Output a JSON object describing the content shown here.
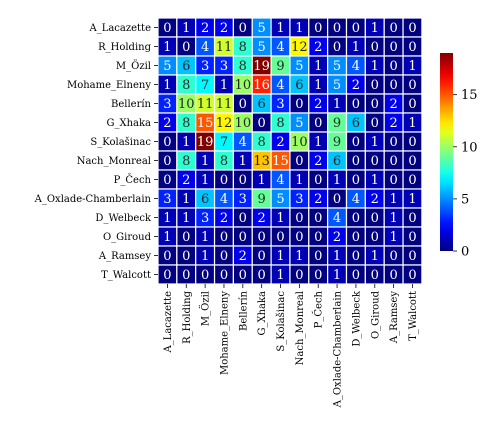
{
  "chart_data": {
    "type": "heatmap",
    "title": "",
    "xlabel": "",
    "ylabel": "",
    "rows": [
      "A_Lacazette",
      "R_Holding",
      "M_Özil",
      "Mohame_Elneny",
      "Bellerín",
      "G_Xhaka",
      "S_Kolašinac",
      "Nach_Monreal",
      "P_Čech",
      "A_Oxlade-Chamberlain",
      "D_Welbeck",
      "O_Giroud",
      "A_Ramsey",
      "T_Walcott"
    ],
    "columns": [
      "A_Lacazette",
      "R_Holding",
      "M_Özil",
      "Mohame_Elneny",
      "Bellerín",
      "G_Xhaka",
      "S_Kolašinac",
      "Nach_Monreal",
      "P_Čech",
      "A_Oxlade-Chamberlain",
      "D_Welbeck",
      "O_Giroud",
      "A_Ramsey",
      "T_Walcott"
    ],
    "values": [
      [
        0,
        1,
        2,
        2,
        0,
        5,
        1,
        1,
        0,
        0,
        0,
        1,
        0,
        0
      ],
      [
        1,
        0,
        4,
        11,
        8,
        5,
        4,
        12,
        2,
        0,
        1,
        0,
        0,
        0
      ],
      [
        5,
        6,
        3,
        3,
        8,
        19,
        9,
        5,
        1,
        5,
        4,
        1,
        0,
        1
      ],
      [
        1,
        8,
        7,
        1,
        10,
        16,
        4,
        6,
        1,
        5,
        2,
        0,
        0,
        0
      ],
      [
        3,
        10,
        11,
        11,
        0,
        6,
        3,
        0,
        2,
        1,
        0,
        0,
        2,
        0
      ],
      [
        2,
        8,
        15,
        12,
        10,
        0,
        8,
        5,
        0,
        9,
        6,
        0,
        2,
        1
      ],
      [
        0,
        1,
        19,
        7,
        4,
        8,
        2,
        10,
        1,
        9,
        0,
        1,
        0,
        0
      ],
      [
        0,
        8,
        1,
        8,
        1,
        13,
        15,
        0,
        2,
        6,
        0,
        0,
        0,
        0
      ],
      [
        0,
        2,
        1,
        0,
        0,
        1,
        4,
        1,
        0,
        1,
        0,
        1,
        0,
        0
      ],
      [
        3,
        1,
        6,
        4,
        3,
        9,
        5,
        3,
        2,
        0,
        4,
        2,
        1,
        1
      ],
      [
        1,
        1,
        3,
        2,
        0,
        2,
        1,
        0,
        0,
        4,
        0,
        0,
        1,
        0
      ],
      [
        1,
        0,
        1,
        0,
        0,
        0,
        0,
        0,
        0,
        2,
        0,
        0,
        1,
        0
      ],
      [
        0,
        0,
        1,
        0,
        2,
        0,
        1,
        1,
        0,
        1,
        0,
        1,
        0,
        0
      ],
      [
        0,
        0,
        0,
        0,
        0,
        0,
        1,
        0,
        0,
        1,
        0,
        0,
        0,
        0
      ]
    ],
    "vmin": 0,
    "vmax": 19,
    "colormap": "jet",
    "annotated": true,
    "colorbar": {
      "ticks": [
        0,
        5,
        10,
        15
      ],
      "placement": "right"
    }
  }
}
